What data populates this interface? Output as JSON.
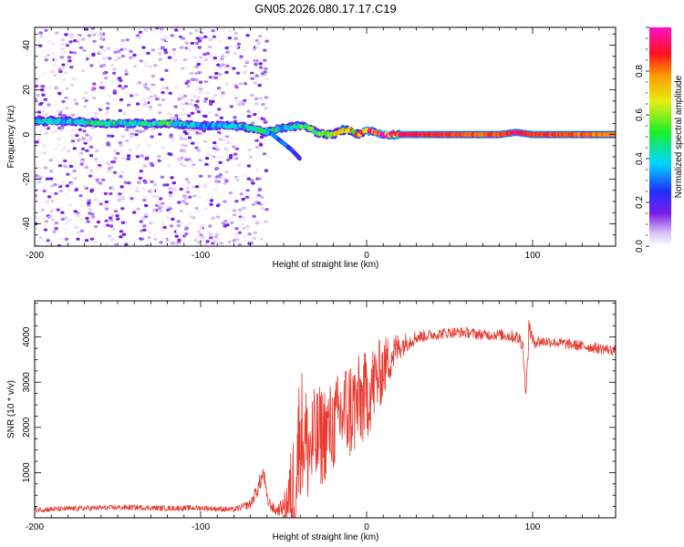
{
  "figure_title": "GN05.2026.080.17.17.C19",
  "colors": {
    "snr_line": "#e83a30",
    "axis": "#000000",
    "ridge": "#5a17d8",
    "background": "#ffffff"
  },
  "chart_data": [
    {
      "type": "heatmap",
      "title": "GN05.2026.080.17.17.C19",
      "xlabel": "Height of straight line (km)",
      "ylabel": "Frequency (Hz)",
      "xlim": [
        -200,
        150
      ],
      "ylim": [
        -50,
        48
      ],
      "xticks": [
        "-200",
        "-100",
        "0",
        "100"
      ],
      "xtick_values": [
        -200,
        -100,
        0,
        100
      ],
      "yticks": [
        "40",
        "20",
        "0",
        "-20",
        "-40"
      ],
      "ytick_values": [
        40,
        20,
        0,
        -20,
        -40
      ],
      "colorbar": {
        "label": "Normalized spectral amplitude",
        "range": [
          0.0,
          1.0
        ],
        "ticks": [
          "0.0",
          "0.2",
          "0.4",
          "0.6",
          "0.8"
        ],
        "tick_values": [
          0.0,
          0.2,
          0.4,
          0.6,
          0.8
        ],
        "colormap": "rainbow (white-violet-blue-cyan-green-yellow-red-magenta)"
      },
      "ridge": {
        "x": [
          -200,
          -180,
          -160,
          -140,
          -120,
          -100,
          -80,
          -70,
          -60,
          -50,
          -40,
          -35,
          -30,
          -25,
          -20,
          -15,
          -10,
          -5,
          0,
          5,
          10,
          20,
          40,
          60,
          80,
          90,
          100,
          120,
          150
        ],
        "frequency": [
          6,
          6,
          5,
          5,
          5,
          4,
          4,
          3,
          1,
          3,
          4,
          3,
          1,
          0,
          0,
          2,
          2,
          0,
          2,
          1,
          0,
          0,
          0,
          0,
          0,
          1,
          0,
          0,
          0
        ],
        "amplitude": [
          0.45,
          0.4,
          0.5,
          0.45,
          0.55,
          0.35,
          0.4,
          0.45,
          0.5,
          0.45,
          0.5,
          0.6,
          0.55,
          0.6,
          0.65,
          0.7,
          0.75,
          0.8,
          0.9,
          0.95,
          1.0,
          0.95,
          0.9,
          0.85,
          0.85,
          0.95,
          0.9,
          0.85,
          0.8
        ]
      },
      "branch": {
        "x": [
          -60,
          -55,
          -50,
          -45,
          -40
        ],
        "frequency": [
          2,
          -1,
          -4,
          -7,
          -11
        ],
        "amplitude": [
          0.35,
          0.3,
          0.3,
          0.25,
          0.2
        ]
      },
      "noise_extent_x": [
        -200,
        -60
      ],
      "noise_amplitude": [
        0.0,
        0.15
      ]
    },
    {
      "type": "line",
      "title": "",
      "xlabel": "Height of straight line (km)",
      "ylabel": "SNR (10 * v/v)",
      "xlim": [
        -200,
        150
      ],
      "ylim": [
        0,
        4800
      ],
      "xticks": [
        "-200",
        "-100",
        "0",
        "100"
      ],
      "xtick_values": [
        -200,
        -100,
        0,
        100
      ],
      "yticks": [
        "4000",
        "3000",
        "2000",
        "1000"
      ],
      "ytick_values": [
        4000,
        3000,
        2000,
        1000
      ],
      "series": [
        {
          "name": "SNR",
          "x": [
            -200,
            -180,
            -160,
            -140,
            -120,
            -100,
            -80,
            -70,
            -65,
            -62,
            -60,
            -55,
            -50,
            -45,
            -42,
            -40,
            -38,
            -35,
            -30,
            -25,
            -20,
            -15,
            -10,
            -5,
            0,
            5,
            10,
            15,
            20,
            25,
            30,
            40,
            50,
            60,
            70,
            80,
            90,
            94,
            96,
            98,
            100,
            110,
            120,
            130,
            140,
            150
          ],
          "values": [
            180,
            200,
            220,
            230,
            210,
            220,
            180,
            300,
            700,
            1000,
            400,
            150,
            250,
            500,
            1200,
            2000,
            1800,
            1500,
            1700,
            1900,
            2000,
            2300,
            2400,
            2500,
            2700,
            3000,
            3300,
            3600,
            3800,
            3900,
            4000,
            4050,
            4100,
            4100,
            4050,
            4050,
            4000,
            3900,
            2700,
            4300,
            3900,
            3900,
            3850,
            3800,
            3750,
            3700
          ],
          "spread": [
            60,
            60,
            60,
            60,
            60,
            60,
            60,
            100,
            200,
            200,
            150,
            100,
            200,
            1200,
            1500,
            1500,
            1400,
            1300,
            1200,
            1100,
            1000,
            1100,
            1200,
            1100,
            1000,
            900,
            700,
            500,
            300,
            200,
            150,
            120,
            120,
            120,
            120,
            120,
            150,
            200,
            100,
            300,
            150,
            120,
            120,
            120,
            120,
            120
          ]
        }
      ]
    }
  ]
}
